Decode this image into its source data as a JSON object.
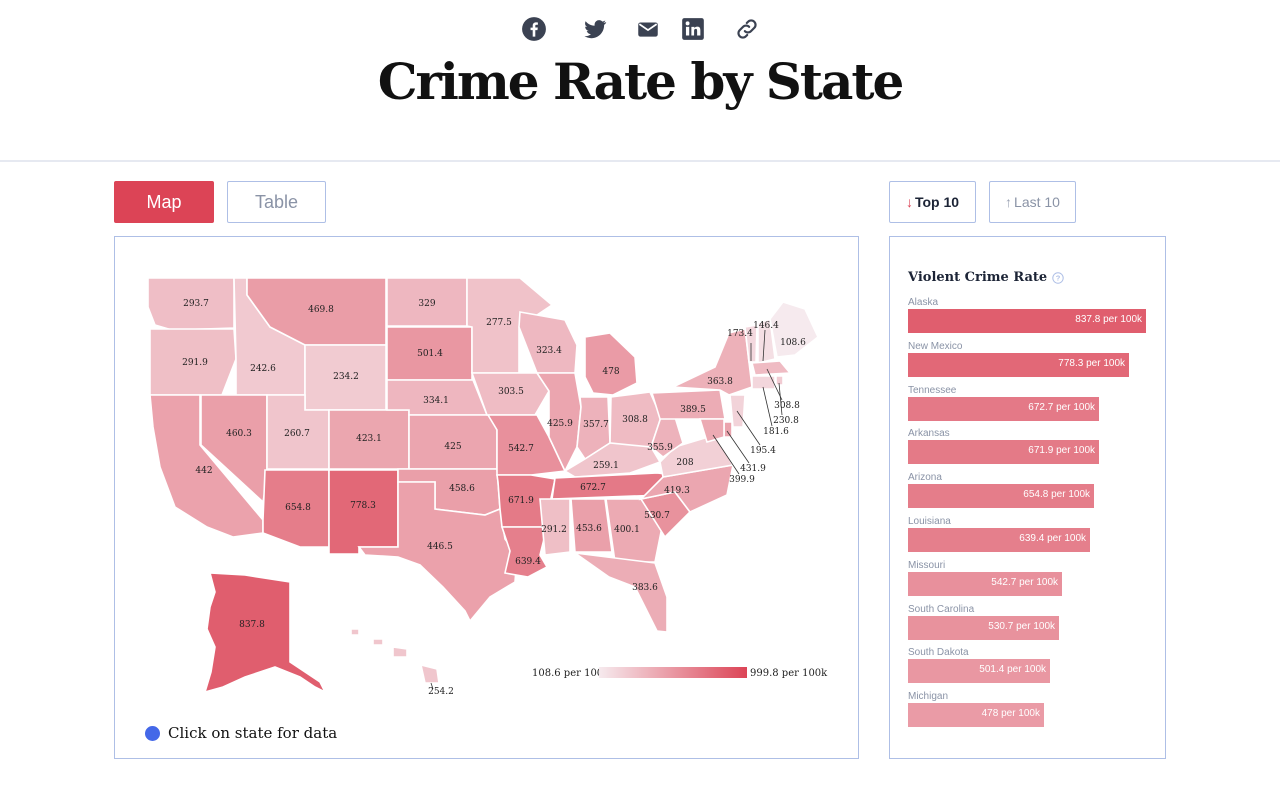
{
  "header": {
    "title": "Crime Rate by State",
    "share_icons": [
      "facebook-icon",
      "twitter-icon",
      "email-icon",
      "linkedin-icon",
      "link-icon"
    ]
  },
  "view_toggle": {
    "map_label": "Map",
    "table_label": "Table",
    "active": "Map"
  },
  "sort_toggle": {
    "top_label": "Top 10",
    "last_label": "Last 10",
    "active": "Top 10"
  },
  "colors": {
    "accent": "#dc4456",
    "low": "#f2e3e7",
    "high": "#dc4456",
    "hint_dot": "#4468e8",
    "border": "#aebfe6"
  },
  "map": {
    "states": [
      {
        "name": "Washington",
        "value": "293.7"
      },
      {
        "name": "Oregon",
        "value": "291.9"
      },
      {
        "name": "California",
        "value": "442"
      },
      {
        "name": "Idaho",
        "value": "242.6"
      },
      {
        "name": "Nevada",
        "value": "460.3"
      },
      {
        "name": "Montana",
        "value": "469.8"
      },
      {
        "name": "Wyoming",
        "value": "234.2"
      },
      {
        "name": "Utah",
        "value": "260.7"
      },
      {
        "name": "Arizona",
        "value": "654.8"
      },
      {
        "name": "Colorado",
        "value": "423.1"
      },
      {
        "name": "New Mexico",
        "value": "778.3"
      },
      {
        "name": "North Dakota",
        "value": "329"
      },
      {
        "name": "South Dakota",
        "value": "501.4"
      },
      {
        "name": "Nebraska",
        "value": "334.1"
      },
      {
        "name": "Kansas",
        "value": "425"
      },
      {
        "name": "Oklahoma",
        "value": "458.6"
      },
      {
        "name": "Texas",
        "value": "446.5"
      },
      {
        "name": "Minnesota",
        "value": "277.5"
      },
      {
        "name": "Iowa",
        "value": "303.5"
      },
      {
        "name": "Missouri",
        "value": "542.7"
      },
      {
        "name": "Arkansas",
        "value": "671.9"
      },
      {
        "name": "Louisiana",
        "value": "639.4"
      },
      {
        "name": "Wisconsin",
        "value": "323.4"
      },
      {
        "name": "Illinois",
        "value": "425.9"
      },
      {
        "name": "Michigan",
        "value": "478"
      },
      {
        "name": "Indiana",
        "value": "357.7"
      },
      {
        "name": "Ohio",
        "value": "308.8"
      },
      {
        "name": "Kentucky",
        "value": "259.1"
      },
      {
        "name": "Tennessee",
        "value": "672.7"
      },
      {
        "name": "Mississippi",
        "value": "291.2"
      },
      {
        "name": "Alabama",
        "value": "453.6"
      },
      {
        "name": "Georgia",
        "value": "400.1"
      },
      {
        "name": "Florida",
        "value": "383.6"
      },
      {
        "name": "South Carolina",
        "value": "530.7"
      },
      {
        "name": "North Carolina",
        "value": "419.3"
      },
      {
        "name": "Virginia",
        "value": "208"
      },
      {
        "name": "West Virginia",
        "value": "355.9"
      },
      {
        "name": "Pennsylvania",
        "value": "389.5"
      },
      {
        "name": "New York",
        "value": "363.8"
      },
      {
        "name": "Vermont",
        "value": "173.4"
      },
      {
        "name": "New Hampshire",
        "value": "146.4"
      },
      {
        "name": "Maine",
        "value": "108.6"
      },
      {
        "name": "Massachusetts",
        "value": "308.8"
      },
      {
        "name": "Rhode Island",
        "value": "230.8"
      },
      {
        "name": "Connecticut",
        "value": "181.6"
      },
      {
        "name": "New Jersey",
        "value": "195.4"
      },
      {
        "name": "Delaware",
        "value": "431.9"
      },
      {
        "name": "Maryland",
        "value": "399.9"
      },
      {
        "name": "Alaska",
        "value": "837.8"
      },
      {
        "name": "Hawaii",
        "value": "254.2"
      }
    ],
    "legend_min": "108.6 per 100k",
    "legend_max": "999.8 per 100k",
    "hint": "Click on state for data"
  },
  "ranking": {
    "title": "Violent Crime Rate",
    "max_value": 837.8,
    "items": [
      {
        "state": "Alaska",
        "value": 837.8,
        "label": "837.8 per 100k"
      },
      {
        "state": "New Mexico",
        "value": 778.3,
        "label": "778.3 per 100k"
      },
      {
        "state": "Tennessee",
        "value": 672.7,
        "label": "672.7 per 100k"
      },
      {
        "state": "Arkansas",
        "value": 671.9,
        "label": "671.9 per 100k"
      },
      {
        "state": "Arizona",
        "value": 654.8,
        "label": "654.8 per 100k"
      },
      {
        "state": "Louisiana",
        "value": 639.4,
        "label": "639.4 per 100k"
      },
      {
        "state": "Missouri",
        "value": 542.7,
        "label": "542.7 per 100k"
      },
      {
        "state": "South Carolina",
        "value": 530.7,
        "label": "530.7 per 100k"
      },
      {
        "state": "South Dakota",
        "value": 501.4,
        "label": "501.4 per 100k"
      },
      {
        "state": "Michigan",
        "value": 478,
        "label": "478 per 100k"
      }
    ]
  }
}
